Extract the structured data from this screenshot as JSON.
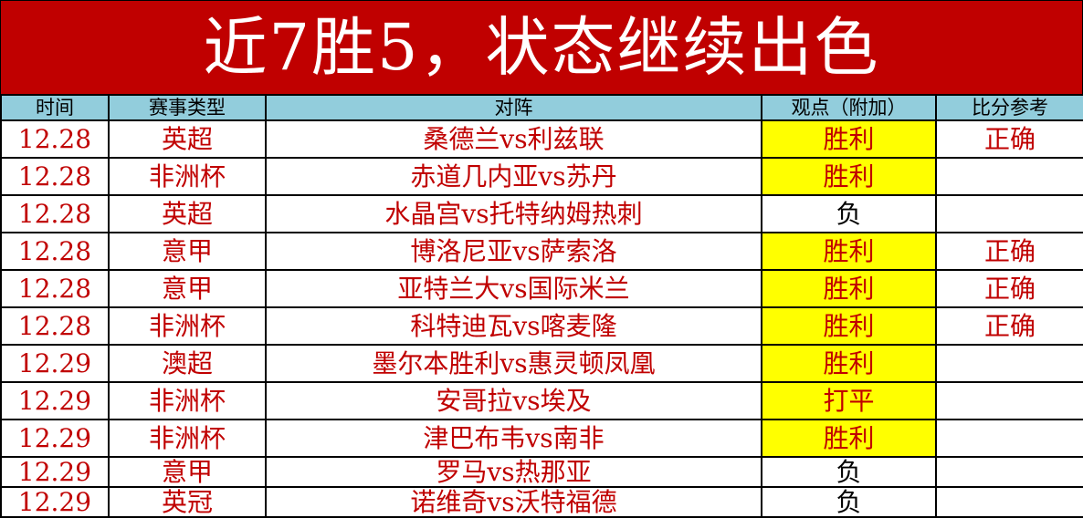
{
  "title": "近7胜5，状态继续出色",
  "colors": {
    "banner": "#C00000",
    "header": "#92CDDC",
    "highlight": "#FFFF00",
    "text": "#C00000"
  },
  "headers": [
    "时间",
    "赛事类型",
    "对阵",
    "观点（附加）",
    "比分参考"
  ],
  "rows": [
    {
      "date": "12.28",
      "league": "英超",
      "match": "桑德兰vs利兹联",
      "pick": "胜利",
      "result": "正确",
      "highlight": true
    },
    {
      "date": "12.28",
      "league": "非洲杯",
      "match": "赤道几内亚vs苏丹",
      "pick": "胜利",
      "result": "",
      "highlight": true
    },
    {
      "date": "12.28",
      "league": "英超",
      "match": "水晶宫vs托特纳姆热刺",
      "pick": "负",
      "result": "",
      "highlight": false
    },
    {
      "date": "12.28",
      "league": "意甲",
      "match": "博洛尼亚vs萨索洛",
      "pick": "胜利",
      "result": "正确",
      "highlight": true
    },
    {
      "date": "12.28",
      "league": "意甲",
      "match": "亚特兰大vs国际米兰",
      "pick": "胜利",
      "result": "正确",
      "highlight": true
    },
    {
      "date": "12.28",
      "league": "非洲杯",
      "match": "科特迪瓦vs喀麦隆",
      "pick": "胜利",
      "result": "正确",
      "highlight": true
    },
    {
      "date": "12.29",
      "league": "澳超",
      "match": "墨尔本胜利vs惠灵顿凤凰",
      "pick": "胜利",
      "result": "",
      "highlight": true
    },
    {
      "date": "12.29",
      "league": "非洲杯",
      "match": "安哥拉vs埃及",
      "pick": "打平",
      "result": "",
      "highlight": true
    },
    {
      "date": "12.29",
      "league": "非洲杯",
      "match": "津巴布韦vs南非",
      "pick": "胜利",
      "result": "",
      "highlight": true
    },
    {
      "date": "12.29",
      "league": "意甲",
      "match": "罗马vs热那亚",
      "pick": "负",
      "result": "",
      "highlight": false
    },
    {
      "date": "12.29",
      "league": "英冠",
      "match": "诺维奇vs沃特福德",
      "pick": "负",
      "result": "",
      "highlight": false
    }
  ]
}
